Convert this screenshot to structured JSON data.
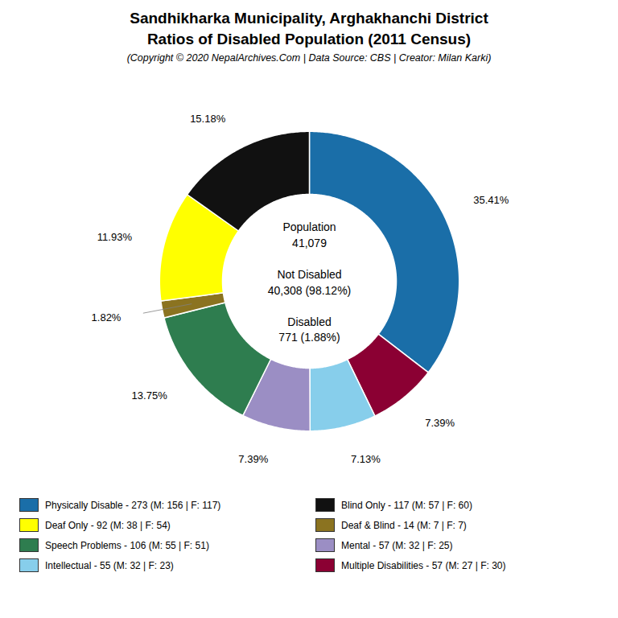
{
  "chart_data": {
    "type": "pie",
    "title": "Sandhikharka Municipality, Arghakhanchi District\nRatios of Disabled Population (2011 Census)",
    "subtitle": "(Copyright © 2020 NepalArchives.Com | Data Source: CBS | Creator: Milan Karki)",
    "values": [
      35.41,
      7.39,
      7.13,
      7.39,
      13.75,
      1.82,
      11.93,
      15.18
    ],
    "value_labels": [
      "35.41%",
      "7.39%",
      "7.13%",
      "7.39%",
      "13.75%",
      "1.82%",
      "11.93%",
      "15.18%"
    ],
    "colors": [
      "#1a6ea8",
      "#8b0033",
      "#87ceeb",
      "#9b8ec4",
      "#2e7d4f",
      "#8b7320",
      "#ffff00",
      "#111111"
    ],
    "data_labels": true,
    "annotations": [
      [
        "Population",
        "41,079"
      ],
      [
        "Not Disabled",
        "40,308 (98.12%)"
      ],
      [
        "Disabled",
        "771 (1.88%)"
      ]
    ],
    "legend": "bottom",
    "legend_entries": [
      {
        "label": "Physically Disable - 273 (M: 156 | F: 117)",
        "color": "#1a6ea8"
      },
      {
        "label": "Deaf Only - 92 (M: 38 | F: 54)",
        "color": "#ffff00"
      },
      {
        "label": "Speech Problems - 106 (M: 55 | F: 51)",
        "color": "#2e7d4f"
      },
      {
        "label": "Intellectual - 55 (M: 32 | F: 23)",
        "color": "#87ceeb"
      },
      {
        "label": "Blind Only - 117 (M: 57 | F: 60)",
        "color": "#111111"
      },
      {
        "label": "Deaf & Blind - 14 (M: 7 | F: 7)",
        "color": "#8b7320"
      },
      {
        "label": "Mental - 57 (M: 32 | F: 25)",
        "color": "#9b8ec4"
      },
      {
        "label": "Multiple Disabilities - 57 (M: 27 | F: 30)",
        "color": "#8b0033"
      }
    ]
  }
}
